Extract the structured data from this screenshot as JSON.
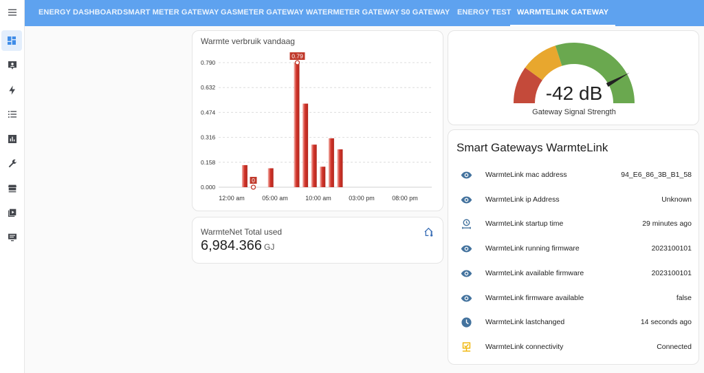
{
  "tabs": [
    {
      "label": "ENERGY DASHBOARD"
    },
    {
      "label": "SMART METER GATEWAY"
    },
    {
      "label": "GASMETER GATEWAY"
    },
    {
      "label": "WATERMETER GATEWAY"
    },
    {
      "label": "S0 GATEWAY"
    },
    {
      "label": "ENERGY TEST"
    },
    {
      "label": "WARMTELINK GATEWAY"
    }
  ],
  "active_tab": 6,
  "sidebar_icons": [
    "menu-icon",
    "dashboard-icon",
    "person-card-icon",
    "lightning-icon",
    "list-icon",
    "chart-bars-icon",
    "wrench-icon",
    "hacs-store-icon",
    "media-icon",
    "monitor-icon"
  ],
  "chart_card": {
    "title": "Warmte verbruik vandaag"
  },
  "chart_data": {
    "type": "bar",
    "title": "Warmte verbruik vandaag",
    "x": [
      "01:30",
      "04:30",
      "07:30",
      "08:30",
      "09:30",
      "10:30",
      "11:30",
      "12:30"
    ],
    "values": [
      0.14,
      0.12,
      0.79,
      0.53,
      0.27,
      0.13,
      0.31,
      0.24
    ],
    "ylim": [
      0,
      0.79
    ],
    "y_ticks": [
      "0.000",
      "0.158",
      "0.316",
      "0.474",
      "0.632",
      "0.790"
    ],
    "x_ticks": [
      "12:00 am",
      "05:00 am",
      "10:00 am",
      "03:00 pm",
      "08:00 pm"
    ],
    "annotations": {
      "max": "0.79",
      "min": "0"
    },
    "grid": true,
    "bar_color": "#d2342a"
  },
  "total_card": {
    "title": "WarmteNet Total used",
    "value": "6,984.366",
    "unit": "GJ",
    "icon": "home-thermometer-icon"
  },
  "gauge": {
    "value": "-42 dB",
    "label": "Gateway Signal Strength",
    "level": 0.84,
    "colors": [
      "#c44a3a",
      "#e8a72e",
      "#6aa84f"
    ]
  },
  "entities": {
    "title": "Smart Gateways WarmteLink",
    "rows": [
      {
        "name": "WarmteLink mac address",
        "value": "94_E6_86_3B_B1_58",
        "icon": "eye-icon"
      },
      {
        "name": "WarmteLink ip Address",
        "value": "Unknown",
        "icon": "eye-icon"
      },
      {
        "name": "WarmteLink startup time",
        "value": "29 minutes ago",
        "icon": "timer-icon"
      },
      {
        "name": "WarmteLink running firmware",
        "value": "2023100101",
        "icon": "eye-icon"
      },
      {
        "name": "WarmteLink available firmware",
        "value": "2023100101",
        "icon": "eye-icon"
      },
      {
        "name": "WarmteLink firmware available",
        "value": "false",
        "icon": "eye-icon"
      },
      {
        "name": "WarmteLink lastchanged",
        "value": "14 seconds ago",
        "icon": "clock-icon"
      },
      {
        "name": "WarmteLink connectivity",
        "value": "Connected",
        "icon": "network-icon"
      }
    ]
  }
}
